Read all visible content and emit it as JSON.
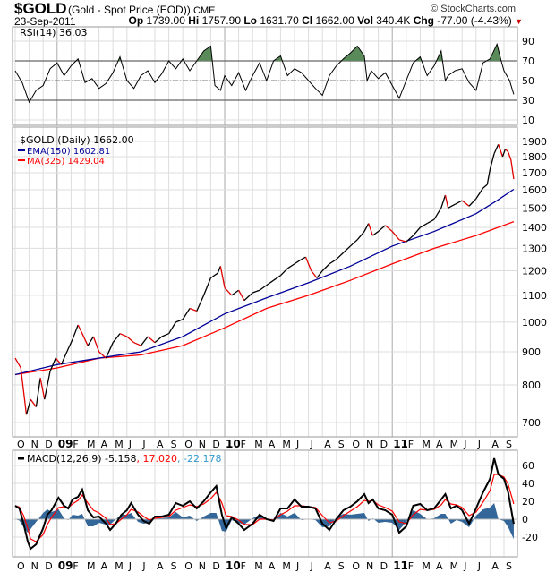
{
  "header": {
    "symbol": "$GOLD",
    "description": "(Gold - Spot Price (EOD))",
    "exchange": "CME",
    "copyright": "© StockCharts.com",
    "date": "23-Sep-2011",
    "open_label": "Op",
    "open": "1739.00",
    "high_label": "Hi",
    "high": "1757.90",
    "low_label": "Lo",
    "low": "1631.70",
    "close_label": "Cl",
    "close": "1662.00",
    "vol_label": "Vol",
    "vol": "340.4K",
    "chg_label": "Chg",
    "chg": "-77.00 (-4.43%)"
  },
  "colors": {
    "up": "#000000",
    "down": "#e00000",
    "ema": "#000099",
    "ma": "#ff0000",
    "macd": "#000000",
    "signal": "#ff0000",
    "hist": "#336699",
    "rsi_fill": "#5a8a5a"
  },
  "chart_data": [
    {
      "type": "line",
      "panel": "rsi",
      "title": "RSI(14) 36.03",
      "yticks": [
        90,
        70,
        50,
        30,
        10
      ],
      "ylim": [
        0,
        100
      ],
      "levels": [
        70,
        50,
        30
      ],
      "x_unit": "months since Oct 2008",
      "series": [
        {
          "name": "RSI(14)",
          "points": [
            [
              0,
              60
            ],
            [
              0.5,
              48
            ],
            [
              1,
              28
            ],
            [
              1.5,
              40
            ],
            [
              2,
              45
            ],
            [
              2.5,
              62
            ],
            [
              3,
              68
            ],
            [
              3.5,
              55
            ],
            [
              4,
              65
            ],
            [
              4.5,
              72
            ],
            [
              5,
              48
            ],
            [
              5.5,
              52
            ],
            [
              6,
              42
            ],
            [
              6.5,
              47
            ],
            [
              7,
              58
            ],
            [
              7.5,
              74
            ],
            [
              8,
              50
            ],
            [
              8.5,
              42
            ],
            [
              9,
              55
            ],
            [
              9.5,
              60
            ],
            [
              10,
              48
            ],
            [
              10.5,
              57
            ],
            [
              11,
              70
            ],
            [
              11.5,
              62
            ],
            [
              12,
              72
            ],
            [
              12.5,
              60
            ],
            [
              13,
              70
            ],
            [
              13.5,
              80
            ],
            [
              14,
              85
            ],
            [
              14.3,
              45
            ],
            [
              14.7,
              40
            ],
            [
              15,
              55
            ],
            [
              15.5,
              45
            ],
            [
              16,
              58
            ],
            [
              16.5,
              40
            ],
            [
              17,
              55
            ],
            [
              17.5,
              68
            ],
            [
              18,
              50
            ],
            [
              18.5,
              70
            ],
            [
              19,
              75
            ],
            [
              19.5,
              55
            ],
            [
              20,
              62
            ],
            [
              20.5,
              58
            ],
            [
              21,
              50
            ],
            [
              21.5,
              42
            ],
            [
              22,
              35
            ],
            [
              22.5,
              55
            ],
            [
              23,
              65
            ],
            [
              23.5,
              72
            ],
            [
              24,
              78
            ],
            [
              24.5,
              85
            ],
            [
              25,
              75
            ],
            [
              25.2,
              50
            ],
            [
              25.5,
              60
            ],
            [
              26,
              52
            ],
            [
              26.5,
              58
            ],
            [
              27,
              45
            ],
            [
              27.5,
              32
            ],
            [
              28,
              50
            ],
            [
              28.5,
              68
            ],
            [
              29,
              74
            ],
            [
              29.5,
              55
            ],
            [
              30,
              65
            ],
            [
              30.5,
              80
            ],
            [
              30.8,
              50
            ],
            [
              31,
              55
            ],
            [
              31.5,
              60
            ],
            [
              32,
              62
            ],
            [
              32.5,
              48
            ],
            [
              33,
              40
            ],
            [
              33.5,
              68
            ],
            [
              34,
              72
            ],
            [
              34.5,
              87
            ],
            [
              34.8,
              70
            ],
            [
              35,
              60
            ],
            [
              35.4,
              50
            ],
            [
              35.7,
              36.03
            ]
          ]
        }
      ]
    },
    {
      "type": "line",
      "panel": "price",
      "scale": "log",
      "title": "$GOLD (Daily) 1662.00",
      "yticks": [
        1900,
        1800,
        1700,
        1600,
        1500,
        1400,
        1300,
        1200,
        1100,
        1000,
        900,
        800,
        700
      ],
      "ylim": [
        660,
        1950
      ],
      "series": [
        {
          "name": "$GOLD",
          "legend": "$GOLD (Daily) 1662.00",
          "points": [
            [
              0,
              880
            ],
            [
              0.4,
              850
            ],
            [
              0.8,
              720
            ],
            [
              1.1,
              760
            ],
            [
              1.5,
              740
            ],
            [
              1.8,
              820
            ],
            [
              2.1,
              760
            ],
            [
              2.5,
              840
            ],
            [
              2.9,
              880
            ],
            [
              3.3,
              860
            ],
            [
              3.7,
              900
            ],
            [
              4.1,
              940
            ],
            [
              4.5,
              990
            ],
            [
              4.8,
              960
            ],
            [
              5.2,
              920
            ],
            [
              5.6,
              950
            ],
            [
              6,
              900
            ],
            [
              6.5,
              880
            ],
            [
              7,
              930
            ],
            [
              7.5,
              960
            ],
            [
              8,
              950
            ],
            [
              8.5,
              930
            ],
            [
              9,
              920
            ],
            [
              9.5,
              950
            ],
            [
              10,
              930
            ],
            [
              10.5,
              950
            ],
            [
              11,
              960
            ],
            [
              11.5,
              1000
            ],
            [
              12,
              1010
            ],
            [
              12.5,
              1050
            ],
            [
              13,
              1040
            ],
            [
              13.5,
              1100
            ],
            [
              14,
              1170
            ],
            [
              14.5,
              1190
            ],
            [
              14.7,
              1220
            ],
            [
              15,
              1130
            ],
            [
              15.5,
              1100
            ],
            [
              16,
              1120
            ],
            [
              16.4,
              1080
            ],
            [
              17,
              1110
            ],
            [
              17.5,
              1120
            ],
            [
              18,
              1140
            ],
            [
              18.5,
              1160
            ],
            [
              19,
              1180
            ],
            [
              19.5,
              1210
            ],
            [
              20,
              1230
            ],
            [
              20.5,
              1250
            ],
            [
              20.8,
              1260
            ],
            [
              21.2,
              1200
            ],
            [
              21.6,
              1170
            ],
            [
              22,
              1200
            ],
            [
              22.5,
              1230
            ],
            [
              23,
              1250
            ],
            [
              23.5,
              1280
            ],
            [
              24,
              1310
            ],
            [
              24.5,
              1340
            ],
            [
              25,
              1380
            ],
            [
              25.3,
              1420
            ],
            [
              25.6,
              1360
            ],
            [
              26,
              1380
            ],
            [
              26.5,
              1410
            ],
            [
              27,
              1380
            ],
            [
              27.5,
              1340
            ],
            [
              28,
              1330
            ],
            [
              28.5,
              1360
            ],
            [
              29,
              1400
            ],
            [
              29.5,
              1420
            ],
            [
              30,
              1440
            ],
            [
              30.5,
              1500
            ],
            [
              30.8,
              1570
            ],
            [
              31,
              1500
            ],
            [
              31.5,
              1520
            ],
            [
              32,
              1540
            ],
            [
              32.5,
              1510
            ],
            [
              33,
              1550
            ],
            [
              33.5,
              1610
            ],
            [
              33.8,
              1630
            ],
            [
              34,
              1720
            ],
            [
              34.3,
              1820
            ],
            [
              34.6,
              1880
            ],
            [
              34.9,
              1800
            ],
            [
              35.1,
              1850
            ],
            [
              35.3,
              1830
            ],
            [
              35.5,
              1780
            ],
            [
              35.7,
              1662
            ]
          ]
        },
        {
          "name": "EMA(150)",
          "legend": "EMA(150) 1602.81",
          "points": [
            [
              0,
              830
            ],
            [
              3,
              860
            ],
            [
              6,
              880
            ],
            [
              9,
              900
            ],
            [
              12,
              950
            ],
            [
              15,
              1030
            ],
            [
              18,
              1090
            ],
            [
              21,
              1150
            ],
            [
              24,
              1220
            ],
            [
              27,
              1310
            ],
            [
              30,
              1380
            ],
            [
              33,
              1470
            ],
            [
              34.5,
              1540
            ],
            [
              35.7,
              1602.81
            ]
          ]
        },
        {
          "name": "MA(325)",
          "legend": "MA(325) 1429.04",
          "points": [
            [
              0,
              830
            ],
            [
              3,
              850
            ],
            [
              6,
              880
            ],
            [
              9,
              890
            ],
            [
              12,
              920
            ],
            [
              15,
              980
            ],
            [
              18,
              1050
            ],
            [
              21,
              1100
            ],
            [
              24,
              1160
            ],
            [
              27,
              1230
            ],
            [
              30,
              1300
            ],
            [
              33,
              1360
            ],
            [
              35.7,
              1429.04
            ]
          ]
        }
      ]
    },
    {
      "type": "line",
      "panel": "macd",
      "title": "MACD(12,26,9)",
      "values_text": [
        "-5.158",
        ", 17.020",
        ", -22.178"
      ],
      "yticks": [
        60,
        40,
        20,
        0,
        -20
      ],
      "ylim": [
        -38,
        72
      ],
      "t": [
        0,
        0.3,
        0.6,
        0.9,
        1.1,
        1.5,
        2,
        2.3,
        2.6,
        3.1,
        3.5,
        3.8,
        4.1,
        4.5,
        4.8,
        5.2,
        5.6,
        6,
        6.5,
        6.8,
        7.2,
        7.6,
        8,
        8.3,
        8.8,
        9.2,
        9.6,
        10,
        10.5,
        11,
        11.5,
        12,
        12.5,
        13,
        13.5,
        14,
        14.4,
        14.8,
        15.1,
        15.5,
        16,
        16.4,
        17,
        17.5,
        18,
        18.5,
        19,
        19.5,
        20,
        20.5,
        21,
        21.5,
        22,
        22.5,
        23,
        23.5,
        24,
        24.5,
        25,
        25.3,
        25.6,
        26,
        26.5,
        27,
        27.5,
        28,
        28.5,
        29,
        29.5,
        30,
        30.5,
        30.8,
        31.2,
        31.6,
        32,
        32.5,
        33,
        33.5,
        34,
        34.3,
        34.6,
        35,
        35.3,
        35.7
      ],
      "macd": [
        15,
        12,
        -5,
        -25,
        -33,
        -28,
        -10,
        5,
        10,
        24,
        15,
        12,
        22,
        25,
        33,
        10,
        2,
        3,
        -5,
        -12,
        -5,
        5,
        10,
        18,
        5,
        -2,
        -5,
        3,
        3,
        5,
        18,
        15,
        20,
        12,
        20,
        30,
        37,
        5,
        -10,
        2,
        -5,
        -12,
        -5,
        5,
        0,
        -2,
        12,
        12,
        22,
        14,
        14,
        12,
        -5,
        -12,
        0,
        10,
        14,
        20,
        28,
        18,
        22,
        12,
        10,
        5,
        -15,
        -8,
        15,
        17,
        10,
        12,
        22,
        28,
        12,
        15,
        10,
        -5,
        12,
        30,
        45,
        68,
        50,
        45,
        30,
        -5.158
      ],
      "signal": [
        15,
        13.5,
        4,
        -10,
        -22,
        -25,
        -17,
        -6,
        2,
        13,
        14,
        13,
        17,
        21,
        27,
        18,
        10,
        7,
        1,
        -6,
        -5,
        0,
        5,
        11,
        8,
        3,
        -1,
        1,
        2,
        3,
        10,
        13,
        16,
        14,
        17,
        23,
        30,
        18,
        4,
        3,
        -1,
        -6,
        -6,
        0,
        0,
        -1,
        5,
        9,
        15,
        15,
        14,
        13,
        4,
        -4,
        -2,
        4,
        9,
        14,
        21,
        20,
        21,
        16,
        13,
        9,
        -3,
        -5,
        5,
        11,
        10,
        11,
        16,
        22,
        17,
        16,
        13,
        4,
        8,
        19,
        32,
        50,
        50,
        47,
        39,
        17.02
      ]
    }
  ],
  "x_axis": {
    "labels": [
      "O",
      "N",
      "D",
      "09",
      "F",
      "M",
      "A",
      "M",
      "J",
      "J",
      "A",
      "S",
      "O",
      "N",
      "D",
      "10",
      "F",
      "M",
      "A",
      "M",
      "J",
      "J",
      "A",
      "S",
      "O",
      "N",
      "D",
      "11",
      "F",
      "M",
      "A",
      "M",
      "J",
      "J",
      "A",
      "S"
    ],
    "bold": [
      "09",
      "10",
      "11"
    ]
  }
}
